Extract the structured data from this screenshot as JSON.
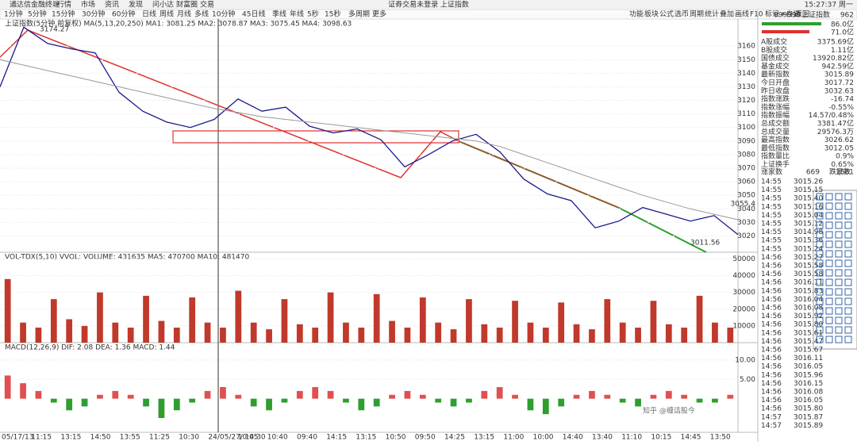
{
  "header": {
    "app": "通达信金融终端",
    "menu": [
      "行情",
      "市场",
      "资讯",
      "发现",
      "问小达",
      "财富圈",
      "交易"
    ],
    "notice": "证券交易未登录 上证指数",
    "clock": "15:27:37 周一",
    "tools": [
      "功能",
      "板块",
      "公式",
      "选币",
      "周期",
      "统计",
      "叠加",
      "画线",
      "F10",
      "标记",
      "+自选",
      "返回"
    ]
  },
  "periods": [
    "1分钟",
    "5分钟",
    "15分钟",
    "30分钟",
    "60分钟",
    "日线",
    "周线",
    "月线",
    "多线",
    "10分钟",
    "45日线",
    "季线",
    "年线",
    "5秒",
    "15秒",
    "多周期",
    "更多"
  ],
  "chart_data": [
    {
      "type": "line",
      "title": "上证指数(5分钟,前复权) MA(5,13,20,250) MA1: 3081.25 MA2: 3078.87 MA3: 3075.45 MA4: 3098.63",
      "annotations": [
        "3174.27",
        "3011.56",
        "3055.4"
      ],
      "series": [
        {
          "name": "上证指数",
          "color": "#1a1a8c",
          "values": [
            3130,
            3174,
            3162,
            3158,
            3155,
            3126,
            3112,
            3104,
            3100,
            3106,
            3121,
            3112,
            3115,
            3101,
            3096,
            3099,
            3091,
            3071,
            3080,
            3090,
            3095,
            3082,
            3062,
            3051,
            3046,
            3026,
            3031,
            3041,
            3036,
            3031,
            3035,
            3021
          ]
        },
        {
          "name": "MA4",
          "color": "#999999",
          "values": [
            3150,
            3146,
            3142,
            3138,
            3134,
            3130,
            3126,
            3122,
            3118,
            3114,
            3111,
            3108,
            3106,
            3104,
            3102,
            3100,
            3098,
            3096,
            3094,
            3092,
            3090,
            3086,
            3080,
            3074,
            3068,
            3062,
            3056,
            3050,
            3045,
            3040,
            3036,
            3032
          ]
        }
      ],
      "ylim": [
        3008,
        3180
      ],
      "yticks": [
        3160,
        3150,
        3140,
        3130,
        3120,
        3110,
        3100,
        3090,
        3080,
        3070,
        3060,
        3050,
        3040,
        3030,
        3020
      ]
    },
    {
      "type": "bar",
      "title": "VOL-TDX(5,10) VVOL: VOLUME: 431635 MA5: 470700 MA10: 481470",
      "color": "#c0392b",
      "values": [
        38000,
        12000,
        9000,
        26000,
        14000,
        10000,
        30000,
        12000,
        9000,
        28000,
        13000,
        9000,
        27000,
        12000,
        9000,
        31000,
        12000,
        8000,
        26000,
        11000,
        9000,
        30000,
        12000,
        9000,
        29000,
        13000,
        9000,
        27000,
        12000,
        8000,
        26000,
        11000,
        9000,
        25000,
        12000,
        9000,
        24000,
        11000,
        8000,
        26000,
        12000,
        9000,
        25000,
        11000,
        9000,
        28000,
        12000,
        9000
      ],
      "ylim": [
        0,
        54000
      ],
      "yticks": [
        50000,
        40000,
        30000,
        20000,
        10000
      ]
    },
    {
      "type": "bar",
      "title": "MACD(12,26,9) DIF: 2.08 DEA: 1.36 MACD: 1.44",
      "values": [
        6,
        4,
        2,
        -1,
        -3,
        -2,
        1,
        2,
        1,
        -2,
        -5,
        -3,
        -1,
        2,
        3,
        1,
        -2,
        -3,
        -1,
        2,
        3,
        2,
        -1,
        -3,
        -2,
        1,
        2,
        1,
        -1,
        -2,
        -1,
        2,
        3,
        1,
        -3,
        -4,
        -2,
        1,
        2,
        1,
        -1,
        -2,
        1,
        2,
        1,
        -1,
        -1,
        1
      ],
      "ylim": [
        -8.7,
        14.5
      ],
      "yticks": [
        {
          "value": 10,
          "label": "10.00"
        },
        {
          "value": 5,
          "label": "5.00"
        }
      ]
    }
  ],
  "xlabels": [
    "05/17/13",
    "11:15",
    "13:15",
    "14:50",
    "13:55",
    "11:25",
    "10:30",
    "24/05/27/ 14:30",
    "10:05",
    "10:40",
    "09:40",
    "14:15",
    "13:15",
    "10:50",
    "09:50",
    "14:25",
    "13:15",
    "11:00",
    "10:00",
    "14:40",
    "13:40",
    "11:10",
    "10:15",
    "14:45",
    "13:50"
  ],
  "watermark": "知乎 @缠话股今",
  "side": {
    "code": "999999",
    "name": "上证指数",
    "counter": "962",
    "buy": "86.0亿",
    "sell": "71.0亿",
    "stats": [
      [
        "A股成交",
        "3375.69亿"
      ],
      [
        "B股成交",
        "1.11亿"
      ],
      [
        "国债成交",
        "13920.82亿"
      ],
      [
        "基金成交",
        "942.59亿"
      ],
      [
        "最新指数",
        "3015.89"
      ],
      [
        "今日开盘",
        "3017.72"
      ],
      [
        "昨日收盘",
        "3032.63"
      ],
      [
        "指数涨跌",
        "-16.74"
      ],
      [
        "指数涨幅",
        "-0.55%"
      ],
      [
        "指数振幅",
        "14.57/0.48%"
      ],
      [
        "总成交额",
        "3381.47亿"
      ],
      [
        "总成交量",
        "29576.3万"
      ],
      [
        "最高指数",
        "3026.62"
      ],
      [
        "最低指数",
        "3012.05"
      ],
      [
        "指数量比",
        "0.9%"
      ],
      [
        "上证换手",
        "0.65%"
      ]
    ],
    "breadth": [
      "涨家数",
      "669",
      "跌家数",
      "1581"
    ],
    "ticks": [
      [
        "14:55",
        "3015.26"
      ],
      [
        "14:55",
        "3015.15"
      ],
      [
        "14:55",
        "3015.40"
      ],
      [
        "14:55",
        "3015.16"
      ],
      [
        "14:55",
        "3015.04"
      ],
      [
        "14:55",
        "3015.12"
      ],
      [
        "14:55",
        "3014.98"
      ],
      [
        "14:55",
        "3015.36"
      ],
      [
        "14:55",
        "3015.24"
      ],
      [
        "14:56",
        "3015.27"
      ],
      [
        "14:56",
        "3015.58"
      ],
      [
        "14:56",
        "3015.58"
      ],
      [
        "14:56",
        "3016.11"
      ],
      [
        "14:56",
        "3015.83"
      ],
      [
        "14:56",
        "3016.04"
      ],
      [
        "14:56",
        "3016.08"
      ],
      [
        "14:56",
        "3015.92"
      ],
      [
        "14:56",
        "3015.80"
      ],
      [
        "14:56",
        "3015.61"
      ],
      [
        "14:56",
        "3015.47"
      ],
      [
        "14:56",
        "3015.67"
      ],
      [
        "14:56",
        "3016.11"
      ],
      [
        "14:56",
        "3016.05"
      ],
      [
        "14:56",
        "3015.96"
      ],
      [
        "14:56",
        "3016.15"
      ],
      [
        "14:56",
        "3016.08"
      ],
      [
        "14:56",
        "3016.05"
      ],
      [
        "14:56",
        "3015.80"
      ],
      [
        "14:57",
        "3015.87"
      ],
      [
        "14:57",
        "3015.89"
      ]
    ]
  }
}
